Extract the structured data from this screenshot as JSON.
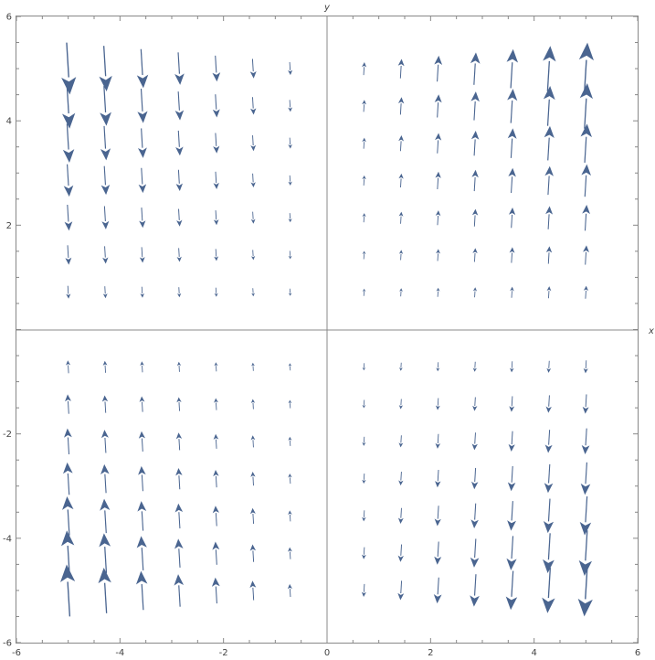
{
  "chart_data": {
    "type": "vector-field",
    "title": "",
    "xlabel": "x",
    "ylabel": "y",
    "xlim": [
      -6,
      6
    ],
    "ylim": [
      -6,
      6
    ],
    "x_ticks": [
      -6,
      -4,
      -2,
      0,
      2,
      4,
      6
    ],
    "y_ticks": [
      -6,
      -4,
      -2,
      0,
      2,
      4,
      6
    ],
    "x_tick_labels": [
      "-6",
      "-4",
      "-2",
      "0",
      "2",
      "4",
      "6"
    ],
    "y_tick_labels": [
      "-6",
      "-4",
      "-2",
      "",
      "2",
      "4",
      "6"
    ],
    "grid": false,
    "frame": true,
    "arrow_color": "#4a6590",
    "axis_color": "#888888",
    "field": {
      "vx": "x*y",
      "vy": "x*y"
    },
    "sample_x": [
      -5,
      -4.2857,
      -3.5714,
      -2.8571,
      -2.1429,
      -1.4286,
      -0.7143,
      0.7143,
      1.4286,
      2.1429,
      2.8571,
      3.5714,
      4.2857,
      5
    ],
    "sample_y": [
      -5,
      -4.2857,
      -3.5714,
      -2.8571,
      -2.1429,
      -1.4286,
      -0.7143,
      0.7143,
      1.4286,
      2.1429,
      2.8571,
      3.5714,
      4.2857,
      5
    ]
  }
}
